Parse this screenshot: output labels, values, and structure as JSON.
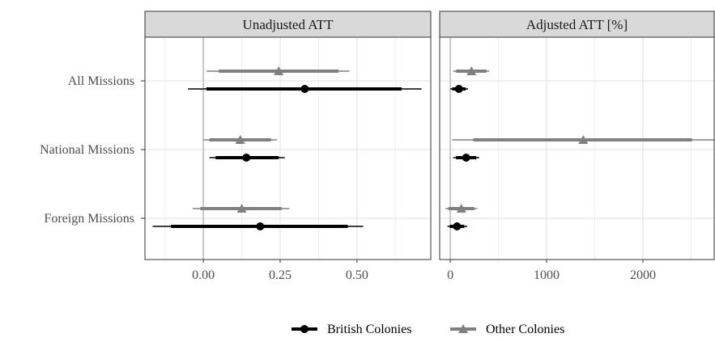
{
  "chart_data": {
    "type": "scatter",
    "subtype": "forest-plot-faceted",
    "categories": [
      "All Missions",
      "National Missions",
      "Foreign Missions"
    ],
    "legend": {
      "placement": "bottom",
      "entries": [
        {
          "name": "British Colonies",
          "color": "#000000",
          "marker": "circle"
        },
        {
          "name": "Other Colonies",
          "color": "#808080",
          "marker": "triangle"
        }
      ]
    },
    "grid": true,
    "panels": [
      {
        "title": "Unadjusted ATT",
        "xlim": [
          -0.19,
          0.74
        ],
        "xticks": [
          0.0,
          0.25,
          0.5
        ],
        "xtick_labels": [
          "0.00",
          "0.25",
          "0.50"
        ],
        "zero_line": 0,
        "series": [
          {
            "name": "British Colonies",
            "points": [
              {
                "category": "All Missions",
                "estimate": 0.33,
                "ci90": [
                  0.01,
                  0.645
                ],
                "ci95": [
                  -0.05,
                  0.71
                ]
              },
              {
                "category": "National Missions",
                "estimate": 0.14,
                "ci90": [
                  0.04,
                  0.245
                ],
                "ci95": [
                  0.02,
                  0.265
                ]
              },
              {
                "category": "Foreign Missions",
                "estimate": 0.185,
                "ci90": [
                  -0.105,
                  0.47
                ],
                "ci95": [
                  -0.165,
                  0.52
                ]
              }
            ]
          },
          {
            "name": "Other Colonies",
            "points": [
              {
                "category": "All Missions",
                "estimate": 0.245,
                "ci90": [
                  0.05,
                  0.44
                ],
                "ci95": [
                  0.01,
                  0.475
                ]
              },
              {
                "category": "National Missions",
                "estimate": 0.12,
                "ci90": [
                  0.02,
                  0.22
                ],
                "ci95": [
                  0.0,
                  0.24
                ]
              },
              {
                "category": "Foreign Missions",
                "estimate": 0.125,
                "ci90": [
                  -0.01,
                  0.255
                ],
                "ci95": [
                  -0.035,
                  0.28
                ]
              }
            ]
          }
        ]
      },
      {
        "title": "Adjusted ATT [%]",
        "xlim": [
          -110,
          2740
        ],
        "xticks": [
          0,
          1000,
          2000
        ],
        "xtick_labels": [
          "0",
          "1000",
          "2000"
        ],
        "zero_line": 0,
        "series": [
          {
            "name": "British Colonies",
            "points": [
              {
                "category": "All Missions",
                "estimate": 90,
                "ci90": [
                  20,
                  160
                ],
                "ci95": [
                  0,
                  185
                ]
              },
              {
                "category": "National Missions",
                "estimate": 165,
                "ci90": [
                  60,
                  270
                ],
                "ci95": [
                  30,
                  300
                ]
              },
              {
                "category": "Foreign Missions",
                "estimate": 70,
                "ci90": [
                  -5,
                  145
                ],
                "ci95": [
                  -30,
                  175
                ]
              }
            ]
          },
          {
            "name": "Other Colonies",
            "points": [
              {
                "category": "All Missions",
                "estimate": 220,
                "ci90": [
                  60,
                  375
                ],
                "ci95": [
                  30,
                  405
                ]
              },
              {
                "category": "National Missions",
                "estimate": 1380,
                "ci90": [
                  240,
                  2510
                ],
                "ci95": [
                  20,
                  2740
                ]
              },
              {
                "category": "Foreign Missions",
                "estimate": 115,
                "ci90": [
                  -20,
                  250
                ],
                "ci95": [
                  -50,
                  280
                ]
              }
            ]
          }
        ]
      }
    ]
  }
}
